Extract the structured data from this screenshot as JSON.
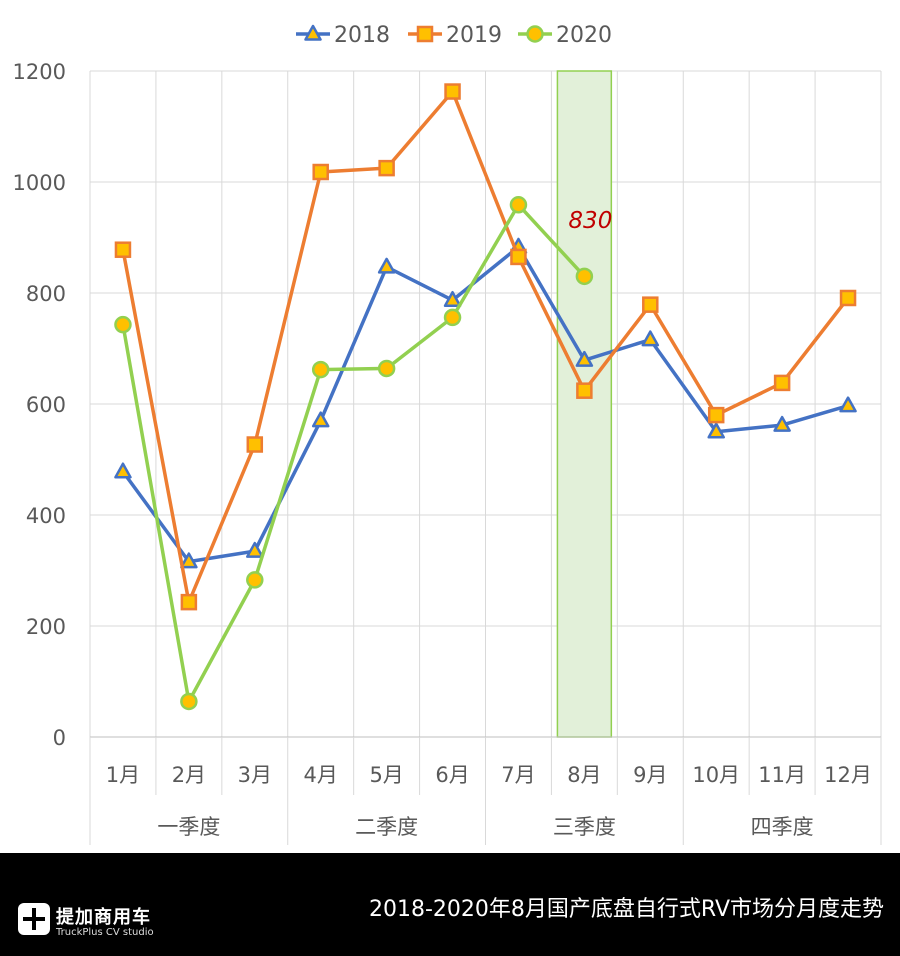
{
  "chart_data": {
    "type": "line",
    "categories": [
      "1月",
      "2月",
      "3月",
      "4月",
      "5月",
      "6月",
      "7月",
      "8月",
      "9月",
      "10月",
      "11月",
      "12月"
    ],
    "groups": [
      {
        "label": "一季度",
        "months": 3
      },
      {
        "label": "二季度",
        "months": 3
      },
      {
        "label": "三季度",
        "months": 3
      },
      {
        "label": "四季度",
        "months": 3
      }
    ],
    "series": [
      {
        "name": "2018",
        "color": "#4472C4",
        "marker": "triangle",
        "values": [
          478,
          316,
          335,
          570,
          847,
          787,
          883,
          679,
          716,
          550,
          562,
          597
        ]
      },
      {
        "name": "2019",
        "color": "#ED7D31",
        "marker": "square",
        "values": [
          878,
          243,
          527,
          1018,
          1025,
          1163,
          865,
          624,
          779,
          580,
          638,
          791
        ]
      },
      {
        "name": "2020",
        "color": "#92D050",
        "marker": "circle",
        "values": [
          743,
          64,
          283,
          662,
          664,
          756,
          959,
          830,
          null,
          null,
          null,
          null
        ]
      }
    ],
    "ylim": [
      0,
      1200
    ],
    "yticks": [
      0,
      200,
      400,
      600,
      800,
      1000,
      1200
    ],
    "highlight_category": "8月",
    "annotation": {
      "text": "830",
      "color": "#C00000"
    },
    "legend_position": "top",
    "grid": true
  },
  "footer": {
    "brand_cn": "提加商用车",
    "brand_en": "TruckPlus CV studio",
    "title": "2018-2020年8月国产底盘自行式RV市场分月度走势"
  }
}
